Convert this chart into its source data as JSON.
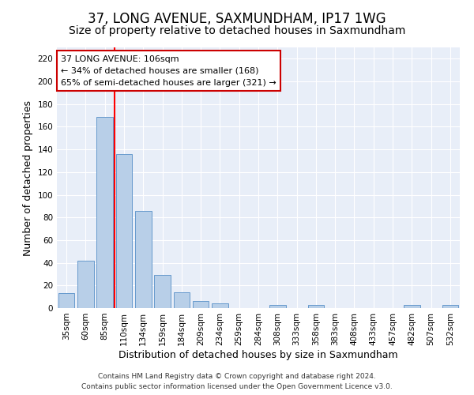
{
  "title": "37, LONG AVENUE, SAXMUNDHAM, IP17 1WG",
  "subtitle": "Size of property relative to detached houses in Saxmundham",
  "xlabel": "Distribution of detached houses by size in Saxmundham",
  "ylabel": "Number of detached properties",
  "footer_line1": "Contains HM Land Registry data © Crown copyright and database right 2024.",
  "footer_line2": "Contains public sector information licensed under the Open Government Licence v3.0.",
  "annotation_line1": "37 LONG AVENUE: 106sqm",
  "annotation_line2": "← 34% of detached houses are smaller (168)",
  "annotation_line3": "65% of semi-detached houses are larger (321) →",
  "bar_categories": [
    "35sqm",
    "60sqm",
    "85sqm",
    "110sqm",
    "134sqm",
    "159sqm",
    "184sqm",
    "209sqm",
    "234sqm",
    "259sqm",
    "284sqm",
    "308sqm",
    "333sqm",
    "358sqm",
    "383sqm",
    "408sqm",
    "433sqm",
    "457sqm",
    "482sqm",
    "507sqm",
    "532sqm"
  ],
  "bar_values": [
    13,
    42,
    169,
    136,
    86,
    29,
    14,
    6,
    4,
    0,
    0,
    3,
    0,
    3,
    0,
    0,
    0,
    0,
    3,
    0,
    3
  ],
  "bar_color": "#b8cfe8",
  "bar_edgecolor": "#6699cc",
  "vline_color": "red",
  "vline_position": 2.5,
  "ylim": [
    0,
    230
  ],
  "yticks": [
    0,
    20,
    40,
    60,
    80,
    100,
    120,
    140,
    160,
    180,
    200,
    220
  ],
  "bg_color": "#ffffff",
  "plot_bg_color": "#e8eef8",
  "grid_color": "#ffffff",
  "title_fontsize": 12,
  "subtitle_fontsize": 10,
  "ylabel_fontsize": 9,
  "xlabel_fontsize": 9,
  "tick_fontsize": 7.5,
  "annotation_fontsize": 8,
  "footer_fontsize": 6.5,
  "annotation_box_color": "#ffffff",
  "annotation_box_edgecolor": "#cc0000"
}
